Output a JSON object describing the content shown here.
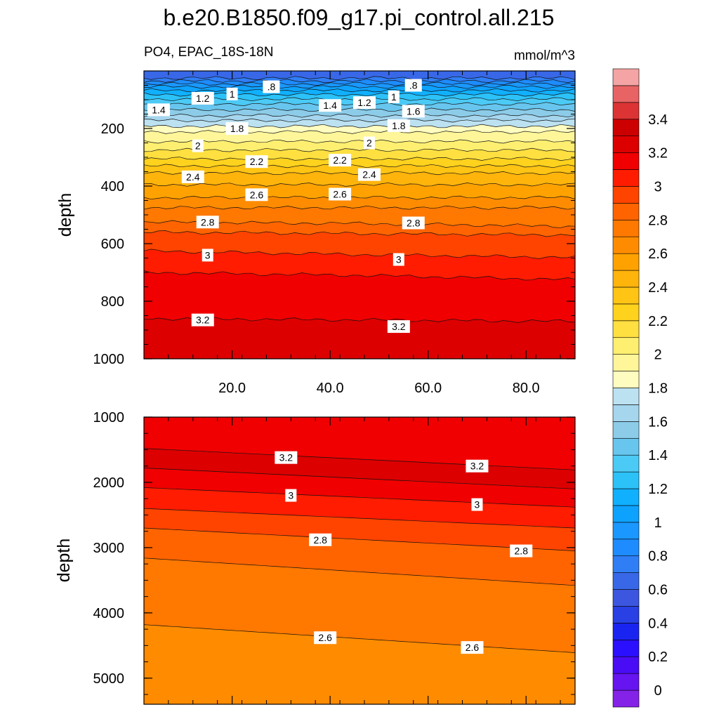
{
  "figure": {
    "title": "b.e20.B1850.f09_g17.pi_control.all.215",
    "subtitle_left": "PO4, EPAC_18S-18N",
    "subtitle_right": "mmol/m^3"
  },
  "chart_data": [
    {
      "type": "contour",
      "panel": "upper",
      "variable": "PO4",
      "region": "EPAC_18S-18N",
      "units": "mmol/m^3",
      "ylabel": "depth",
      "xlim": [
        2,
        90
      ],
      "ylim": [
        1000,
        0
      ],
      "x_ticks": [
        20.0,
        40.0,
        60.0,
        80.0
      ],
      "x_tick_labels": [
        "20.0",
        "40.0",
        "60.0",
        "80.0"
      ],
      "y_ticks": [
        200,
        400,
        600,
        800,
        1000
      ],
      "y_tick_labels": [
        "200",
        "400",
        "600",
        "800",
        "1000"
      ],
      "contour_interval": 0.1,
      "isolines": [
        {
          "level": 0.7,
          "depth": [
            25,
            25,
            25
          ]
        },
        {
          "level": 0.8,
          "depth": [
            35,
            35,
            35
          ]
        },
        {
          "level": 0.9,
          "depth": [
            45,
            45,
            45
          ]
        },
        {
          "level": 1.0,
          "depth": [
            55,
            55,
            55
          ]
        },
        {
          "level": 1.1,
          "depth": [
            68,
            68,
            68
          ]
        },
        {
          "level": 1.2,
          "depth": [
            82,
            82,
            82
          ]
        },
        {
          "level": 1.3,
          "depth": [
            98,
            98,
            98
          ]
        },
        {
          "level": 1.4,
          "depth": [
            115,
            115,
            115
          ]
        },
        {
          "level": 1.5,
          "depth": [
            135,
            135,
            135
          ]
        },
        {
          "level": 1.6,
          "depth": [
            155,
            155,
            155
          ]
        },
        {
          "level": 1.7,
          "depth": [
            172,
            172,
            172
          ]
        },
        {
          "level": 1.8,
          "depth": [
            192,
            192,
            192
          ]
        },
        {
          "level": 1.9,
          "depth": [
            212,
            212,
            212
          ]
        },
        {
          "level": 2.0,
          "depth": [
            245,
            245,
            245
          ]
        },
        {
          "level": 2.1,
          "depth": [
            275,
            275,
            275
          ]
        },
        {
          "level": 2.2,
          "depth": [
            305,
            305,
            305
          ]
        },
        {
          "level": 2.3,
          "depth": [
            330,
            330,
            330
          ]
        },
        {
          "level": 2.4,
          "depth": [
            355,
            355,
            355
          ]
        },
        {
          "level": 2.5,
          "depth": [
            395,
            395,
            395
          ]
        },
        {
          "level": 2.6,
          "depth": [
            440,
            440,
            440
          ]
        },
        {
          "level": 2.7,
          "depth": [
            475,
            475,
            475
          ]
        },
        {
          "level": 2.8,
          "depth": [
            525,
            530,
            540
          ]
        },
        {
          "level": 2.9,
          "depth": [
            560,
            565,
            570
          ]
        },
        {
          "level": 3.0,
          "depth": [
            625,
            638,
            648
          ]
        },
        {
          "level": 3.1,
          "depth": [
            700,
            710,
            725
          ]
        },
        {
          "level": 3.2,
          "depth": [
            860,
            865,
            870
          ]
        }
      ],
      "labels": [
        {
          "text": "1.4",
          "x": 5,
          "depth": 135
        },
        {
          "text": "1.2",
          "x": 14,
          "depth": 95
        },
        {
          "text": "1",
          "x": 20,
          "depth": 80
        },
        {
          "text": ".8",
          "x": 28,
          "depth": 55
        },
        {
          "text": "1.8",
          "x": 21,
          "depth": 200
        },
        {
          "text": "2",
          "x": 13,
          "depth": 260
        },
        {
          "text": "2.2",
          "x": 25,
          "depth": 315
        },
        {
          "text": "2.4",
          "x": 12,
          "depth": 368
        },
        {
          "text": "2.6",
          "x": 25,
          "depth": 430
        },
        {
          "text": "2.8",
          "x": 15,
          "depth": 525
        },
        {
          "text": "3",
          "x": 15,
          "depth": 640
        },
        {
          "text": "3.2",
          "x": 14,
          "depth": 865
        },
        {
          "text": "1.4",
          "x": 40,
          "depth": 120
        },
        {
          "text": "1.2",
          "x": 47,
          "depth": 110
        },
        {
          "text": "1",
          "x": 53,
          "depth": 90
        },
        {
          "text": ".8",
          "x": 57,
          "depth": 50
        },
        {
          "text": "1.6",
          "x": 57,
          "depth": 140
        },
        {
          "text": "1.8",
          "x": 54,
          "depth": 190
        },
        {
          "text": "2",
          "x": 48,
          "depth": 250
        },
        {
          "text": "2.2",
          "x": 42,
          "depth": 310
        },
        {
          "text": "2.4",
          "x": 48,
          "depth": 360
        },
        {
          "text": "2.6",
          "x": 42,
          "depth": 428
        },
        {
          "text": "2.8",
          "x": 57,
          "depth": 528
        },
        {
          "text": "3",
          "x": 54,
          "depth": 655
        },
        {
          "text": "3.2",
          "x": 54,
          "depth": 888
        }
      ]
    },
    {
      "type": "contour",
      "panel": "lower",
      "variable": "PO4",
      "units": "mmol/m^3",
      "ylabel": "depth",
      "xlim": [
        2,
        90
      ],
      "ylim": [
        5400,
        1000
      ],
      "x_ticks": [
        20.0,
        40.0,
        60.0,
        80.0
      ],
      "y_ticks": [
        1000,
        2000,
        3000,
        4000,
        5000
      ],
      "y_tick_labels": [
        "1000",
        "2000",
        "3000",
        "4000",
        "5000"
      ],
      "contour_interval": 0.1,
      "isolines": [
        {
          "level": 3.2,
          "depth": [
            1480,
            1810
          ]
        },
        {
          "level": 3.1,
          "depth": [
            1780,
            2100
          ]
        },
        {
          "level": 3.0,
          "depth": [
            2080,
            2380
          ]
        },
        {
          "level": 2.9,
          "depth": [
            2400,
            2700
          ]
        },
        {
          "level": 2.8,
          "depth": [
            2700,
            3050
          ]
        },
        {
          "level": 2.7,
          "depth": [
            3160,
            3580
          ]
        },
        {
          "level": 2.6,
          "depth": [
            4180,
            4610
          ]
        }
      ],
      "labels": [
        {
          "text": "3.2",
          "x": 31,
          "depth": 1620
        },
        {
          "text": "3",
          "x": 32,
          "depth": 2200
        },
        {
          "text": "2.8",
          "x": 38,
          "depth": 2880
        },
        {
          "text": "2.6",
          "x": 39,
          "depth": 4380
        },
        {
          "text": "3.2",
          "x": 70,
          "depth": 1750
        },
        {
          "text": "3",
          "x": 70,
          "depth": 2340
        },
        {
          "text": "2.8",
          "x": 79,
          "depth": 3050
        },
        {
          "text": "2.6",
          "x": 69,
          "depth": 4530
        }
      ]
    }
  ],
  "colorbar": {
    "tick_labels": [
      "0",
      "0.2",
      "0.4",
      "0.6",
      "0.8",
      "1",
      "1.2",
      "1.4",
      "1.6",
      "1.8",
      "2",
      "2.2",
      "2.4",
      "2.6",
      "2.8",
      "3",
      "3.2",
      "3.4"
    ],
    "levels_min": -0.1,
    "interval": 0.1,
    "colors": [
      "#8422e8",
      "#6614f0",
      "#4a0cf4",
      "#2a10ff",
      "#1a24f0",
      "#2840e4",
      "#3c56df",
      "#3868e8",
      "#2f7ef5",
      "#1e8cff",
      "#1a98ff",
      "#0ea2ff",
      "#10b0ff",
      "#2cc2f8",
      "#4ccaf6",
      "#68c6ee",
      "#8ccce8",
      "#a6d6ee",
      "#bce2f2",
      "#fffcc0",
      "#fff69a",
      "#ffef70",
      "#ffe040",
      "#ffd21e",
      "#ffc414",
      "#ffb40c",
      "#ffa200",
      "#ff8c00",
      "#ff7800",
      "#ff6400",
      "#ff4400",
      "#ff1c00",
      "#f00000",
      "#dc0000",
      "#cc0000",
      "#dc3434",
      "#e86464",
      "#f4a4a4"
    ]
  }
}
